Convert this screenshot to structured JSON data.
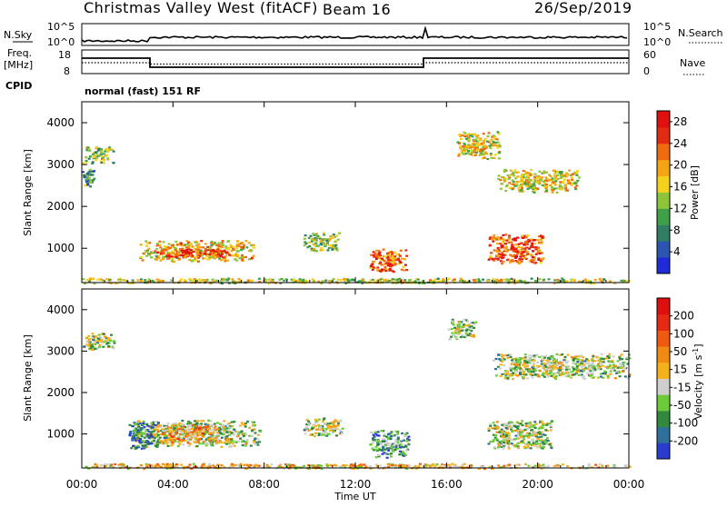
{
  "header": {
    "station": "Christmas Valley West (fitACF)",
    "beam": "Beam 16",
    "date": "26/Sep/2019"
  },
  "top_panels": {
    "noise": {
      "left_label": "N.Sky",
      "right_label": "N.Search",
      "left_ticks": [
        "10^5",
        "10^0"
      ],
      "right_ticks": [
        "10^5",
        "10^0"
      ]
    },
    "freq": {
      "left_label_1": "Freq.",
      "left_label_2": "[MHz]",
      "right_label": "Nave",
      "left_ticks": [
        "18",
        "8"
      ],
      "right_ticks": [
        "60",
        "0"
      ]
    },
    "cpid": {
      "label": "CPID",
      "text": "normal (fast) 151 RF"
    }
  },
  "chart_data": [
    {
      "type": "heatmap",
      "name": "power",
      "ylabel": "Slant Range [km]",
      "xlabel": "",
      "x_ticks": [
        "00:00",
        "04:00",
        "08:00",
        "12:00",
        "16:00",
        "20:00",
        "00:00"
      ],
      "x_range_hours": [
        0,
        24
      ],
      "y_ticks": [
        1000,
        2000,
        3000,
        4000
      ],
      "ylim": [
        180,
        4500
      ],
      "colorbar": {
        "label": "Power [dB]",
        "ticks": [
          4,
          8,
          12,
          16,
          20,
          24,
          28
        ],
        "range": [
          0,
          30
        ],
        "colors": [
          "#1f2bd8",
          "#2b55b0",
          "#2f7e63",
          "#3ea14a",
          "#8cc43a",
          "#f2d21b",
          "#f5a512",
          "#f06a10",
          "#e32b12",
          "#e01010"
        ]
      },
      "regions": [
        {
          "t": [
            0.0,
            1.4
          ],
          "r": [
            3050,
            3450
          ],
          "level": 0.45
        },
        {
          "t": [
            0.0,
            0.5
          ],
          "r": [
            2450,
            2900
          ],
          "level": 0.3
        },
        {
          "t": [
            2.5,
            7.5
          ],
          "r": [
            700,
            1200
          ],
          "level": 0.6
        },
        {
          "t": [
            3.4,
            6.8
          ],
          "r": [
            800,
            1000
          ],
          "level": 0.85
        },
        {
          "t": [
            9.7,
            11.3
          ],
          "r": [
            950,
            1400
          ],
          "level": 0.45
        },
        {
          "t": [
            12.6,
            14.2
          ],
          "r": [
            450,
            1000
          ],
          "level": 0.75
        },
        {
          "t": [
            16.4,
            18.3
          ],
          "r": [
            3150,
            3800
          ],
          "level": 0.55
        },
        {
          "t": [
            18.2,
            21.8
          ],
          "r": [
            2350,
            2900
          ],
          "level": 0.55
        },
        {
          "t": [
            17.8,
            20.2
          ],
          "r": [
            650,
            1350
          ],
          "level": 0.8
        },
        {
          "t": [
            0.0,
            24.0
          ],
          "r": [
            180,
            300
          ],
          "level": 0.5
        }
      ]
    },
    {
      "type": "heatmap",
      "name": "velocity",
      "ylabel": "Slant Range [km]",
      "xlabel": "Time UT",
      "x_ticks": [
        "00:00",
        "04:00",
        "08:00",
        "12:00",
        "16:00",
        "20:00",
        "00:00"
      ],
      "x_range_hours": [
        0,
        24
      ],
      "y_ticks": [
        1000,
        2000,
        3000,
        4000
      ],
      "ylim": [
        180,
        4500
      ],
      "colorbar": {
        "label": "Velocity [m s",
        "label_sup": "-1",
        "label_end": "]",
        "ticks": [
          "200",
          "100",
          "50",
          "15",
          "-15",
          "-50",
          "-100",
          "-200"
        ],
        "colors": [
          "#2a3ccf",
          "#2f6f9c",
          "#2f8a3c",
          "#6ccb39",
          "#cfcfcf",
          "#f5b01a",
          "#f08a12",
          "#f05a10",
          "#e52a12",
          "#e00f0f"
        ]
      },
      "regions": [
        {
          "t": [
            0.0,
            1.4
          ],
          "r": [
            3050,
            3450
          ],
          "level": 0.4
        },
        {
          "t": [
            2.1,
            7.8
          ],
          "r": [
            700,
            1350
          ],
          "level": 0.4
        },
        {
          "t": [
            3.2,
            6.0
          ],
          "r": [
            800,
            1250
          ],
          "level": 0.6
        },
        {
          "t": [
            2.0,
            3.2
          ],
          "r": [
            650,
            1300
          ],
          "level": 0.2
        },
        {
          "t": [
            9.7,
            11.4
          ],
          "r": [
            950,
            1400
          ],
          "level": 0.4
        },
        {
          "t": [
            12.6,
            14.3
          ],
          "r": [
            450,
            1100
          ],
          "level": 0.25
        },
        {
          "t": [
            16.0,
            17.3
          ],
          "r": [
            3300,
            3800
          ],
          "level": 0.4
        },
        {
          "t": [
            18.0,
            24.0
          ],
          "r": [
            2350,
            2950
          ],
          "level": 0.4
        },
        {
          "t": [
            17.8,
            20.6
          ],
          "r": [
            650,
            1350
          ],
          "level": 0.4
        },
        {
          "t": [
            0.0,
            24.0
          ],
          "r": [
            180,
            300
          ],
          "level": 0.55
        }
      ]
    }
  ]
}
